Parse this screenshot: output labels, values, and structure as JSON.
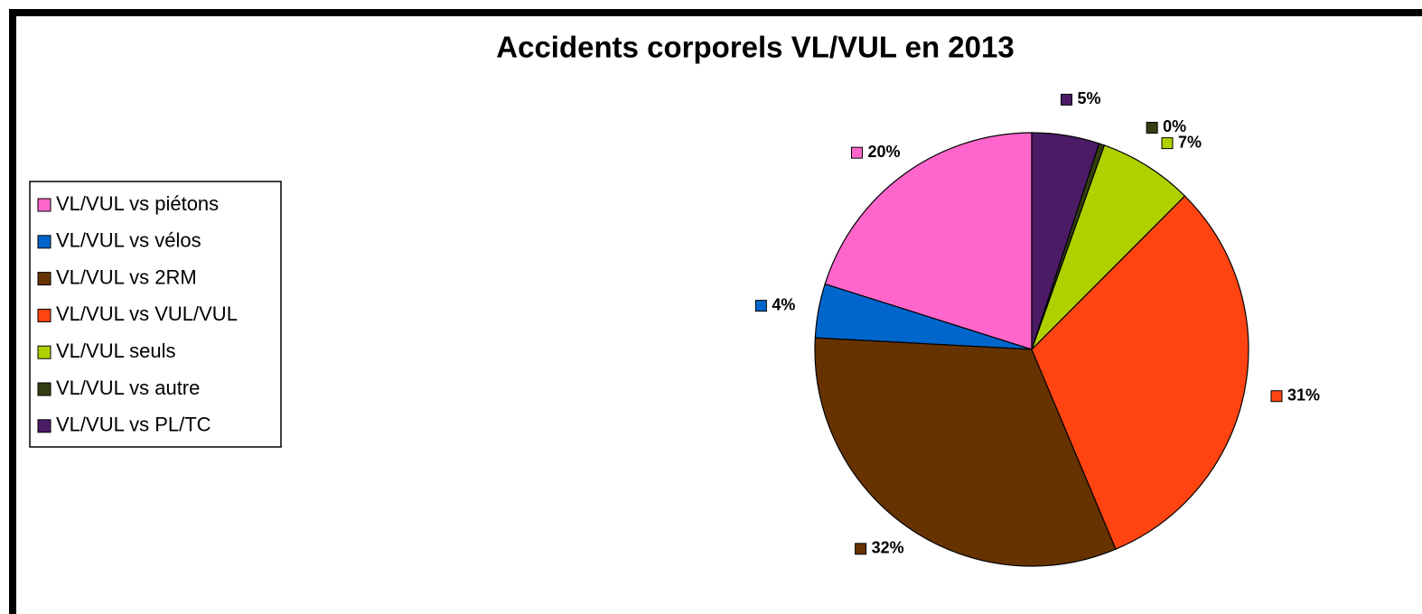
{
  "chart_data": {
    "type": "pie",
    "title": "Accidents corporels VL/VUL en 2013",
    "categories": [
      "VL/VUL vs piétons",
      "VL/VUL vs vélos",
      "VL/VUL vs 2RM",
      "VL/VUL vs VUL/VUL",
      "VL/VUL seuls",
      "VL/VUL vs autre",
      "VL/VUL vs PL/TC"
    ],
    "values": [
      20,
      4,
      32,
      31,
      7,
      0.4,
      5
    ],
    "value_labels": [
      "20%",
      "4%",
      "32%",
      "31%",
      "7%",
      "0%",
      "5%"
    ],
    "colors": [
      "#ff66cc",
      "#0066cc",
      "#663300",
      "#ff4411",
      "#b0d000",
      "#333f10",
      "#4b1b66"
    ],
    "legend": "left"
  }
}
